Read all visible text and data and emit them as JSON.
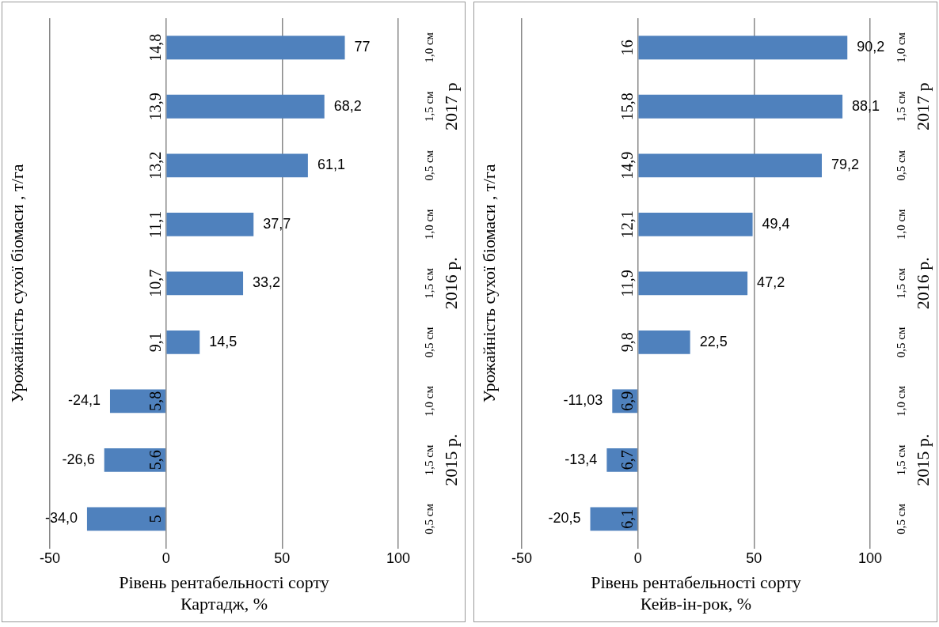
{
  "chart_data": [
    {
      "type": "bar",
      "orientation": "horizontal",
      "xlabel": "Рівень рентабельності сорту Картадж, %",
      "ylabel": "Урожайність сухої біомаси , т/га",
      "categories": [
        "1,0 см",
        "1,5 см",
        "0,5 см",
        "1,0 см",
        "1,5 см",
        "0,5 см",
        "1,0 см",
        "1,5 см",
        "0,5 см"
      ],
      "values": [
        77,
        68.2,
        61.1,
        37.7,
        33.2,
        14.5,
        -24.1,
        -26.6,
        -34.0
      ],
      "value_labels": [
        "77",
        "68,2",
        "61,1",
        "37,7",
        "33,2",
        "14,5",
        "-24,1",
        "-26,6",
        "-34,0"
      ],
      "color": "#4f81bd",
      "xlim": [
        -50,
        100
      ],
      "xticks": [
        -50,
        0,
        50,
        100
      ],
      "grid": "x",
      "annotations": [
        "14,8",
        "13,9",
        "13,2",
        "11,1",
        "10,7",
        "9,1",
        "5,8",
        "5,6",
        "5",
        "2017 р",
        "2016 р.",
        "2015 р."
      ]
    },
    {
      "type": "bar",
      "orientation": "horizontal",
      "xlabel": "Рівень рентабельності сорту Кейв-ін-рок, %",
      "ylabel": "Урожайність сухої біомаси , т/га",
      "categories": [
        "1,0 см",
        "1,5 см",
        "0,5 см",
        "1,0 см",
        "1,5 см",
        "0,5 см",
        "1,0 см",
        "1,5 см",
        "0,5 см"
      ],
      "values": [
        90.2,
        88.1,
        79.2,
        49.4,
        47.2,
        22.5,
        -11.03,
        -13.4,
        -20.5
      ],
      "value_labels": [
        "90,2",
        "88,1",
        "79,2",
        "49,4",
        "47,2",
        "22,5",
        "-11,03",
        "-13,4",
        "-20,5"
      ],
      "color": "#4f81bd",
      "xlim": [
        -50,
        100
      ],
      "xticks": [
        -50,
        0,
        50,
        100
      ],
      "grid": "x",
      "annotations": [
        "16",
        "15,8",
        "14,9",
        "12,1",
        "11,9",
        "9,8",
        "6,9",
        "6,7",
        "6,1",
        "2017 р",
        "2016 р.",
        "2015 р."
      ]
    }
  ]
}
